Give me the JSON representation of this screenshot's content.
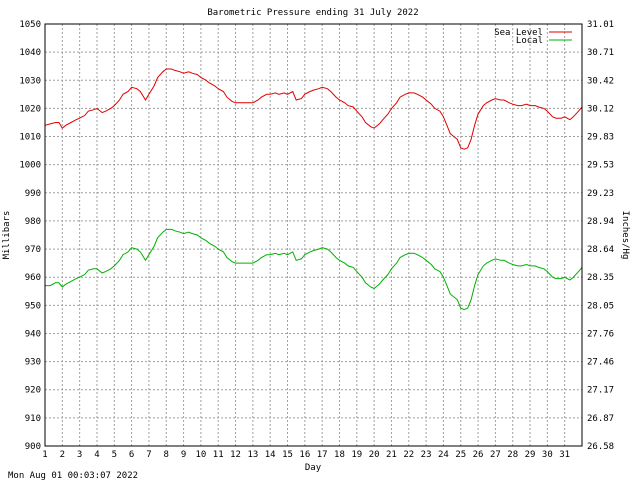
{
  "chart_data": {
    "type": "line",
    "title": "Barometric Pressure ending 31 July 2022",
    "xlabel": "Day",
    "ylabel_left": "Millibars",
    "ylabel_right": "Inches/Hg",
    "timestamp": "Mon Aug 01 00:03:07 2022",
    "xlim": [
      1,
      32
    ],
    "ylim": [
      900,
      1050
    ],
    "x_ticks": [
      "1",
      "2",
      "3",
      "4",
      "5",
      "6",
      "7",
      "8",
      "9",
      "10",
      "11",
      "12",
      "13",
      "14",
      "15",
      "16",
      "17",
      "18",
      "19",
      "20",
      "21",
      "22",
      "23",
      "24",
      "25",
      "26",
      "27",
      "28",
      "29",
      "30",
      "31"
    ],
    "y_ticks_left": [
      "900",
      "910",
      "920",
      "930",
      "940",
      "950",
      "960",
      "970",
      "980",
      "990",
      "1000",
      "1010",
      "1020",
      "1030",
      "1040",
      "1050"
    ],
    "y_ticks_right": [
      "26.58",
      "26.87",
      "27.17",
      "27.46",
      "27.76",
      "28.05",
      "28.35",
      "28.64",
      "28.94",
      "29.23",
      "29.53",
      "29.83",
      "30.12",
      "30.42",
      "30.71",
      "31.01"
    ],
    "grid": true,
    "legend_position": "top-right",
    "series": [
      {
        "name": "Sea Level",
        "color": "#e00000",
        "x": [
          1.0,
          1.3,
          1.6,
          1.8,
          2.0,
          2.2,
          2.5,
          2.8,
          3.0,
          3.3,
          3.5,
          3.8,
          4.0,
          4.3,
          4.5,
          4.8,
          5.0,
          5.3,
          5.5,
          5.8,
          6.0,
          6.3,
          6.5,
          6.8,
          7.0,
          7.3,
          7.5,
          7.8,
          8.0,
          8.3,
          8.5,
          8.8,
          9.0,
          9.3,
          9.5,
          9.8,
          10.0,
          10.3,
          10.5,
          10.8,
          11.0,
          11.3,
          11.5,
          11.8,
          12.0,
          12.3,
          12.5,
          12.8,
          13.0,
          13.3,
          13.5,
          13.8,
          14.0,
          14.3,
          14.5,
          14.8,
          15.0,
          15.3,
          15.5,
          15.8,
          16.0,
          16.3,
          16.5,
          16.8,
          17.0,
          17.3,
          17.5,
          17.8,
          18.0,
          18.3,
          18.5,
          18.8,
          19.0,
          19.3,
          19.5,
          19.8,
          20.0,
          20.3,
          20.5,
          20.8,
          21.0,
          21.3,
          21.5,
          21.8,
          22.0,
          22.3,
          22.5,
          22.8,
          23.0,
          23.3,
          23.5,
          23.8,
          24.0,
          24.2,
          24.4,
          24.6,
          24.8,
          25.0,
          25.2,
          25.4,
          25.6,
          25.8,
          26.0,
          26.3,
          26.5,
          26.8,
          27.0,
          27.3,
          27.5,
          27.8,
          28.0,
          28.3,
          28.5,
          28.8,
          29.0,
          29.3,
          29.5,
          29.8,
          30.0,
          30.3,
          30.5,
          30.8,
          31.0,
          31.3,
          31.5,
          31.8,
          32.0
        ],
        "y": [
          1014,
          1014.5,
          1015,
          1015,
          1013,
          1014,
          1015,
          1016,
          1016.5,
          1017.5,
          1019,
          1019.5,
          1020,
          1018.5,
          1019,
          1020,
          1021,
          1023,
          1025,
          1026,
          1027.5,
          1027,
          1026,
          1023,
          1025,
          1028,
          1031,
          1033,
          1034,
          1034,
          1033.5,
          1033,
          1032.5,
          1033,
          1032.5,
          1032,
          1031,
          1030,
          1029,
          1028,
          1027,
          1026,
          1024,
          1022.5,
          1022,
          1022,
          1022,
          1022,
          1022,
          1023,
          1024,
          1025,
          1025,
          1025.5,
          1025,
          1025.5,
          1025,
          1026,
          1023,
          1023.5,
          1025,
          1026,
          1026.5,
          1027,
          1027.5,
          1027,
          1026,
          1024,
          1023,
          1022,
          1021,
          1020.5,
          1019,
          1017,
          1015,
          1013.5,
          1013,
          1014.5,
          1016,
          1018,
          1020,
          1022,
          1024,
          1025,
          1025.5,
          1025.5,
          1025,
          1024,
          1023,
          1021.5,
          1020,
          1019,
          1017,
          1014,
          1011,
          1010,
          1009,
          1006,
          1005.5,
          1006,
          1009,
          1014,
          1018,
          1021,
          1022,
          1023,
          1023.5,
          1023,
          1023,
          1022,
          1021.5,
          1021,
          1021,
          1021.5,
          1021,
          1021,
          1020.5,
          1020,
          1019,
          1017,
          1016.5,
          1016.5,
          1017,
          1016,
          1017,
          1019,
          1020.5
        ]
      },
      {
        "name": "Local",
        "color": "#00b000",
        "x": [
          1.0,
          1.3,
          1.6,
          1.8,
          2.0,
          2.2,
          2.5,
          2.8,
          3.0,
          3.3,
          3.5,
          3.8,
          4.0,
          4.3,
          4.5,
          4.8,
          5.0,
          5.3,
          5.5,
          5.8,
          6.0,
          6.3,
          6.5,
          6.8,
          7.0,
          7.3,
          7.5,
          7.8,
          8.0,
          8.3,
          8.5,
          8.8,
          9.0,
          9.3,
          9.5,
          9.8,
          10.0,
          10.3,
          10.5,
          10.8,
          11.0,
          11.3,
          11.5,
          11.8,
          12.0,
          12.3,
          12.5,
          12.8,
          13.0,
          13.3,
          13.5,
          13.8,
          14.0,
          14.3,
          14.5,
          14.8,
          15.0,
          15.3,
          15.5,
          15.8,
          16.0,
          16.3,
          16.5,
          16.8,
          17.0,
          17.3,
          17.5,
          17.8,
          18.0,
          18.3,
          18.5,
          18.8,
          19.0,
          19.3,
          19.5,
          19.8,
          20.0,
          20.3,
          20.5,
          20.8,
          21.0,
          21.3,
          21.5,
          21.8,
          22.0,
          22.3,
          22.5,
          22.8,
          23.0,
          23.3,
          23.5,
          23.8,
          24.0,
          24.2,
          24.4,
          24.6,
          24.8,
          25.0,
          25.2,
          25.4,
          25.6,
          25.8,
          26.0,
          26.3,
          26.5,
          26.8,
          27.0,
          27.3,
          27.5,
          27.8,
          28.0,
          28.3,
          28.5,
          28.8,
          29.0,
          29.3,
          29.5,
          29.8,
          30.0,
          30.3,
          30.5,
          30.8,
          31.0,
          31.3,
          31.5,
          31.8,
          32.0
        ],
        "y": [
          957,
          957,
          958,
          958,
          956.5,
          957.5,
          958.5,
          959.5,
          960,
          961,
          962.5,
          963,
          963,
          961.5,
          962,
          963,
          964,
          966,
          968,
          969,
          970.5,
          970,
          969,
          966,
          968,
          971,
          974,
          976,
          977,
          977,
          976.5,
          976,
          975.5,
          976,
          975.5,
          975,
          974,
          973,
          972,
          971,
          970,
          969,
          967,
          965.5,
          965,
          965,
          965,
          965,
          965,
          966,
          967,
          968,
          968,
          968.5,
          968,
          968.5,
          968,
          969,
          966,
          966.5,
          968,
          969,
          969.5,
          970,
          970.5,
          970,
          969,
          967,
          966,
          965,
          964,
          963.5,
          962,
          960,
          958,
          956.5,
          956,
          957.5,
          959,
          961,
          963,
          965,
          967,
          968,
          968.5,
          968.5,
          968,
          967,
          966,
          964.5,
          963,
          962,
          960,
          957,
          954,
          953,
          952,
          949,
          948.5,
          949,
          952,
          957,
          961,
          964,
          965,
          966,
          966.5,
          966,
          966,
          965,
          964.5,
          964,
          964,
          964.5,
          964,
          964,
          963.5,
          963,
          962,
          960,
          959.5,
          959.5,
          960,
          959,
          960,
          962,
          963.5
        ]
      }
    ]
  }
}
